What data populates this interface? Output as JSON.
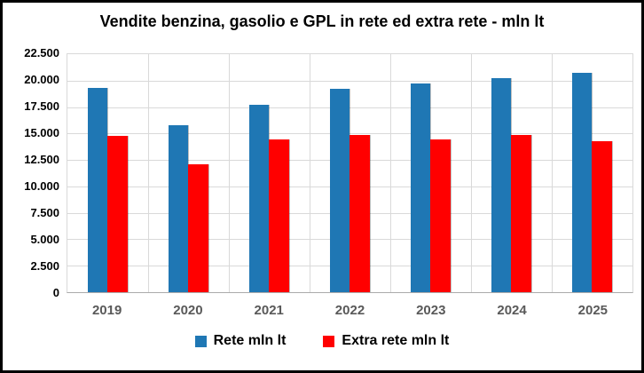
{
  "chart_data": {
    "type": "bar",
    "title": "Vendite benzina, gasolio e GPL in rete ed extra rete - mln lt",
    "categories": [
      "2019",
      "2020",
      "2021",
      "2022",
      "2023",
      "2024",
      "2025"
    ],
    "series": [
      {
        "name": "Rete mln lt",
        "color": "#1f77b4",
        "values": [
          19300,
          15800,
          17750,
          19200,
          19750,
          20250,
          20700
        ]
      },
      {
        "name": "Extra rete mln lt",
        "color": "#ff0000",
        "values": [
          14800,
          12050,
          14400,
          14900,
          14400,
          14900,
          14300
        ]
      }
    ],
    "xlabel": "",
    "ylabel": "",
    "ylim": [
      0,
      22500
    ],
    "ytick_step": 2500,
    "y_tick_labels": [
      "22.500",
      "20.000",
      "17.500",
      "15.000",
      "12.500",
      "10.000",
      "7.500",
      "5.000",
      "2.500",
      "0"
    ],
    "grid": true,
    "gridline_color": "#d9d9d9",
    "axis_label_color": "#595959",
    "legend_position": "bottom",
    "frame_border_color": "#000000"
  }
}
